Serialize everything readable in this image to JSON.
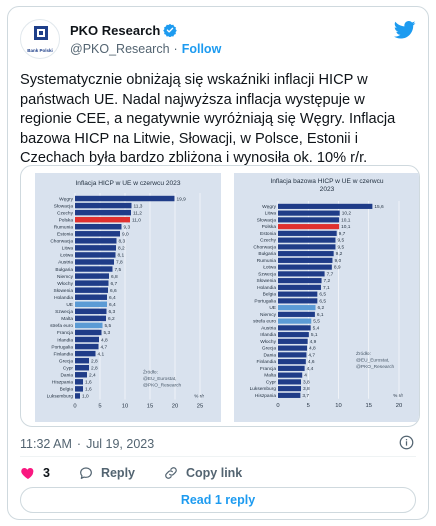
{
  "author": {
    "display_name": "PKO Research",
    "handle": "@PKO_Research",
    "separator": "·",
    "follow_label": "Follow",
    "avatar_text": "Bank Polski"
  },
  "tweet": {
    "text": "Systematycznie obniżają się wskaźniki inflacji HICP w państwach UE. Nadal najwyższa inflacja występuje w regionie CEE, a negatywnie wyróżniają się Węgry. Inflacja bazowa HICP na Litwie, Słowacji, w Polsce, Estonii i Czechach była bardzo zbliżona i wynosiła ok. 10% r/r.",
    "time": "11:32 AM",
    "dot": "·",
    "date": "Jul 19, 2023"
  },
  "actions": {
    "like_count": "3",
    "reply_label": "Reply",
    "copy_label": "Copy link",
    "read_replies_label": "Read 1 reply"
  },
  "colors": {
    "bar_default": "#1f3c88",
    "bar_poland": "#e0312f",
    "bar_highlight": "#5b9bd5",
    "panel_bg": "#d9e2ee",
    "link": "#1d9bf0",
    "heart": "#f91880"
  },
  "icons": {
    "verified": "verified-badge-icon",
    "twitter": "twitter-bird-icon",
    "info": "info-icon",
    "heart": "heart-icon",
    "reply": "reply-bubble-icon",
    "copy": "link-icon"
  },
  "chart_data": [
    {
      "type": "bar",
      "orientation": "horizontal",
      "title": "Inflacja HICP w UE w czerwcu 2023",
      "categories": [
        "Węgry",
        "Słowacja",
        "Czechy",
        "Polska",
        "Rumunia",
        "Estonia",
        "Chorwacja",
        "Litwa",
        "Łotwa",
        "Austria",
        "Bułgaria",
        "Niemcy",
        "Włochy",
        "Słowenia",
        "Holandia",
        "UE",
        "Szwecja",
        "Malta",
        "strefa euro",
        "Francja",
        "Irlandia",
        "Portugalia",
        "Finlandia",
        "Grecja",
        "Cypr",
        "Dania",
        "Hiszpania",
        "Belgia",
        "Luksemburg"
      ],
      "values": [
        19.9,
        11.3,
        11.2,
        11.0,
        9.3,
        9.0,
        8.3,
        8.2,
        8.1,
        7.8,
        7.5,
        6.8,
        6.7,
        6.6,
        6.4,
        6.4,
        6.3,
        6.2,
        5.5,
        5.3,
        4.8,
        4.7,
        4.1,
        2.8,
        2.8,
        2.4,
        1.6,
        1.6,
        1.0
      ],
      "value_labels": [
        "19,9",
        "11,3",
        "11,2",
        "11,0",
        "9,3",
        "9,0",
        "8,3",
        "8,2",
        "8,1",
        "7,8",
        "7,5",
        "6,8",
        "6,7",
        "6,6",
        "6,4",
        "6,4",
        "6,3",
        "6,2",
        "5,5",
        "5,3",
        "4,8",
        "4,7",
        "4,1",
        "2,8",
        "2,8",
        "2,4",
        "1,6",
        "1,6",
        "1,0"
      ],
      "highlight_poland": [
        "Polska"
      ],
      "highlight_aggregate": [
        "UE",
        "strefa euro"
      ],
      "xlim": [
        0,
        25
      ],
      "x_ticks": [
        "0",
        "5",
        "10",
        "15",
        "20",
        "25"
      ],
      "unit": "% r/r",
      "source": [
        "Źródło:",
        "@EU_Eurostat,",
        "@PKO_Research"
      ]
    },
    {
      "type": "bar",
      "orientation": "horizontal",
      "title": "Inflacja bazowa HICP w UE w czerwcu 2023",
      "categories": [
        "Węgry",
        "Litwa",
        "Słowacja",
        "Polska",
        "Estonia",
        "Czechy",
        "Chorwacja",
        "Bułgaria",
        "Rumunia",
        "Łotwa",
        "Szwecja",
        "Słowenia",
        "Holandia",
        "Belgia",
        "Portugalia",
        "UE",
        "Niemcy",
        "strefa euro",
        "Austria",
        "Irlandia",
        "Włochy",
        "Grecja",
        "Dania",
        "Finlandia",
        "Francja",
        "Malta",
        "Cypr",
        "Luksemburg",
        "Hiszpania"
      ],
      "values": [
        15.6,
        10.2,
        10.1,
        10.1,
        9.7,
        9.5,
        9.5,
        9.2,
        9.0,
        8.9,
        7.7,
        7.2,
        7.1,
        6.5,
        6.5,
        6.2,
        6.1,
        5.5,
        5.4,
        5.1,
        4.9,
        4.8,
        4.7,
        4.6,
        4.4,
        4.0,
        3.8,
        3.8,
        3.7
      ],
      "value_labels": [
        "15,6",
        "10,2",
        "10,1",
        "10,1",
        "9,7",
        "9,5",
        "9,5",
        "9,2",
        "9,0",
        "8,9",
        "7,7",
        "7,2",
        "7,1",
        "6,5",
        "6,5",
        "6,2",
        "6,1",
        "5,5",
        "5,4",
        "5,1",
        "4,9",
        "4,8",
        "4,7",
        "4,6",
        "4,4",
        "4",
        "3,8",
        "3,8",
        "3,7"
      ],
      "highlight_poland": [
        "Polska"
      ],
      "highlight_aggregate": [
        "UE",
        "strefa euro"
      ],
      "xlim": [
        0,
        20
      ],
      "x_ticks": [
        "0",
        "5",
        "10",
        "15",
        "20"
      ],
      "unit": "% r/r",
      "source": [
        "Źródło:",
        "@EU_Eurostat,",
        "@PKO_Research"
      ]
    }
  ]
}
